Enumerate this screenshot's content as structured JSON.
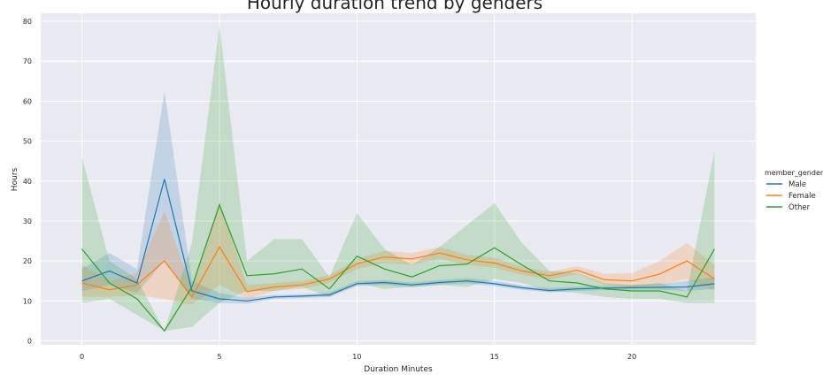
{
  "chart_data": {
    "type": "line",
    "title": "Hourly duration trend by genders",
    "xlabel": "Duration Minutes",
    "ylabel": "Hours",
    "xlim": [
      -1.5,
      24.5
    ],
    "ylim": [
      -1,
      82
    ],
    "x_ticks": [
      0,
      5,
      10,
      15,
      20
    ],
    "y_ticks": [
      0,
      10,
      20,
      30,
      40,
      50,
      60,
      70,
      80
    ],
    "grid": true,
    "background": "#eaeaf2",
    "legend": {
      "title": "member_gender",
      "position": "right"
    },
    "x": [
      0,
      1,
      2,
      3,
      4,
      5,
      6,
      7,
      8,
      9,
      10,
      11,
      12,
      13,
      14,
      15,
      16,
      17,
      18,
      19,
      20,
      21,
      22,
      23
    ],
    "series": [
      {
        "name": "Male",
        "color": "#1f77b4",
        "values": [
          15,
          17.5,
          14.5,
          40.5,
          12.5,
          10.5,
          10,
          11,
          11.2,
          11.5,
          14.3,
          14.6,
          14,
          14.6,
          15,
          14.3,
          13.3,
          12.6,
          13,
          13.2,
          13.3,
          13.4,
          13.5,
          14.3
        ],
        "lower": [
          12.5,
          14,
          12,
          20,
          10.5,
          9.5,
          9.3,
          10.5,
          10.7,
          11,
          13.7,
          14,
          13.4,
          14,
          14.4,
          13.7,
          12.8,
          12.1,
          12.5,
          12.7,
          12.8,
          12.8,
          12.5,
          13
        ],
        "upper": [
          18,
          22,
          18,
          62.5,
          15,
          12,
          10.8,
          11.5,
          11.7,
          12.1,
          15,
          15.2,
          14.6,
          15.2,
          15.7,
          15,
          13.9,
          13.2,
          13.6,
          13.8,
          14,
          14.2,
          15,
          16
        ]
      },
      {
        "name": "Female",
        "color": "#ff7f0e",
        "values": [
          14.5,
          12.8,
          14,
          20,
          11,
          23.5,
          12.3,
          13.5,
          14,
          15.5,
          19.3,
          21,
          20.5,
          22,
          20.3,
          19.5,
          17.5,
          16.3,
          17.7,
          15.3,
          15,
          16.7,
          20,
          15.5
        ],
        "lower": [
          11,
          11,
          11.5,
          10.5,
          9,
          14,
          10.5,
          12.5,
          13,
          14.5,
          18,
          19.5,
          19,
          20.5,
          19,
          18.3,
          16.5,
          15.3,
          16.8,
          14,
          13.3,
          14,
          15.5,
          12.5
        ],
        "upper": [
          19,
          15,
          17,
          32.5,
          13,
          35,
          14,
          14.5,
          15,
          16.5,
          20.5,
          22.5,
          22,
          23.5,
          21.5,
          20.8,
          18.5,
          17.3,
          18.7,
          16.8,
          17,
          20,
          24.5,
          19
        ]
      },
      {
        "name": "Other",
        "color": "#2ca02c",
        "values": [
          23,
          14.5,
          10.5,
          2.5,
          13.5,
          34,
          16.3,
          16.8,
          18,
          13,
          21.2,
          18,
          16,
          18.8,
          19.2,
          23.3,
          19,
          15,
          14.5,
          13,
          12.5,
          12.5,
          11,
          23
        ],
        "lower": [
          9.5,
          10.5,
          6.5,
          2.5,
          3.5,
          9.5,
          12.5,
          12.5,
          13.5,
          11,
          14.5,
          13,
          13.5,
          14,
          13.5,
          15.5,
          14.5,
          12.5,
          12,
          11,
          10.5,
          10.5,
          9.5,
          9.5
        ],
        "upper": [
          46,
          20,
          15.5,
          2.5,
          24.5,
          79,
          20,
          25.5,
          25.5,
          16,
          32,
          23,
          19,
          23.5,
          29,
          34.5,
          24.5,
          17.5,
          17,
          14.5,
          14,
          14.5,
          12.5,
          47.5
        ]
      }
    ]
  }
}
